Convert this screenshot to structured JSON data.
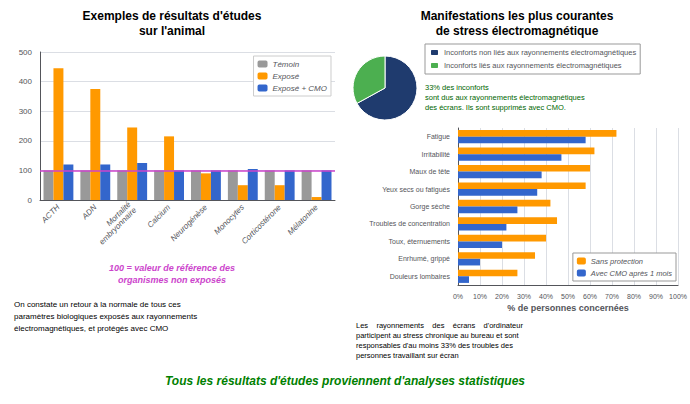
{
  "chart_data": [
    {
      "type": "bar",
      "title": "Exemples de résultats d'études\nsur l'animal",
      "categories": [
        "ACTH",
        "ADN",
        "Mortalité\nembryonnaire",
        "Calcium",
        "Neurogénèse",
        "Monocytes",
        "Corticostérone",
        "Mélatonine"
      ],
      "series": [
        {
          "name": "Témoin",
          "color": "#999999",
          "values": [
            100,
            100,
            100,
            100,
            100,
            100,
            100,
            100
          ]
        },
        {
          "name": "Exposé",
          "color": "#ff9900",
          "values": [
            445,
            375,
            245,
            215,
            90,
            50,
            50,
            10
          ]
        },
        {
          "name": "Exposé + CMO",
          "color": "#3366cc",
          "values": [
            120,
            120,
            125,
            100,
            100,
            105,
            100,
            100
          ]
        }
      ],
      "ylim": [
        0,
        500
      ],
      "yticks": [
        0,
        100,
        200,
        300,
        400,
        500
      ],
      "grid": true,
      "legend": "upper right",
      "reference_line": {
        "value": 100,
        "color": "#cc44cc"
      },
      "annotations": [
        {
          "text": "100 = valeur de référence des\norganismes non exposés",
          "color": "#cc44cc"
        },
        {
          "text": "On constate un retour à la normale de tous ces\nparamètres biologiques exposés aux rayonnements\nélectromagnétiques, et protégés avec CMO"
        }
      ]
    },
    {
      "type": "pie",
      "title": "Manifestations les plus courantes\nde stress électromagnétique",
      "categories": [
        "Inconforts non liés aux rayonnements électromagnétiques",
        "Inconforts liés aux rayonnements électromagnétiques"
      ],
      "values": [
        67,
        33
      ],
      "colors": [
        "#1f3b6e",
        "#4caf50"
      ],
      "legend": "upper right",
      "annotations": [
        {
          "text": "33% des inconforts\nsont dus aux rayonnements électromagnétiques\ndes écrans. Ils sont supprimés avec CMO.",
          "color": "#006600"
        }
      ]
    },
    {
      "type": "bar",
      "orientation": "horizontal",
      "categories": [
        "Fatigue",
        "Irritabilité",
        "Maux de tête",
        "Yeux secs ou fatigués",
        "Gorge sèche",
        "Troubles de concentration",
        "Toux, éternuements",
        "Enrhumé, grippé",
        "Douleurs lombaires"
      ],
      "series": [
        {
          "name": "Sans protection",
          "color": "#ff9900",
          "values": [
            72,
            62,
            60,
            58,
            42,
            45,
            40,
            35,
            27
          ]
        },
        {
          "name": "Avec CMO après 1 mois",
          "color": "#3366cc",
          "values": [
            58,
            47,
            38,
            36,
            27,
            22,
            20,
            10,
            5
          ]
        }
      ],
      "xlabel": "% de personnes concernées",
      "xlim": [
        0,
        100
      ],
      "xticks": [
        {
          "value": 0,
          "label": "0%"
        },
        {
          "value": 10,
          "label": "10%"
        },
        {
          "value": 20,
          "label": "20%"
        },
        {
          "value": 30,
          "label": "30%"
        },
        {
          "value": 40,
          "label": "40%"
        },
        {
          "value": 50,
          "label": "50%"
        },
        {
          "value": 60,
          "label": "60%"
        },
        {
          "value": 70,
          "label": "70%"
        },
        {
          "value": 80,
          "label": "80%"
        },
        {
          "value": 90,
          "label": "90%"
        },
        {
          "value": 100,
          "label": "100%"
        }
      ],
      "grid": true,
      "legend": "lower right",
      "annotations": [
        {
          "text": "Les    rayonnements    des    écrans    d'ordinateur\nparticipent au stress chronique au bureau et sont\nresponsables d'au moins 33% des troubles des\npersonnes travaillant sur écran"
        }
      ]
    }
  ],
  "annotations": [
    {
      "text": "Tous les résultats d'études proviennent d'analyses statistiques",
      "color": "#008000"
    }
  ]
}
